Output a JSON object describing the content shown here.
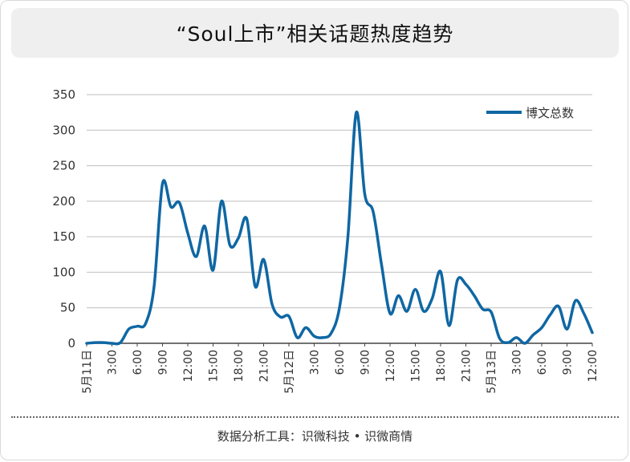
{
  "title": "“Soul上市”相关话题热度趋势",
  "source": "数据分析工具：识微科技 • 识微商情",
  "colors": {
    "line": "#0f67a3",
    "grid": "#bfbfbf",
    "axis": "#444444",
    "text": "#333333",
    "title_bg": "#efefef"
  },
  "chart_data": {
    "type": "line",
    "title": "",
    "xlabel": "",
    "ylabel": "",
    "ylim": [
      0,
      350
    ],
    "y_ticks": [
      0,
      50,
      100,
      150,
      200,
      250,
      300,
      350
    ],
    "grid": true,
    "legend_position": "top-right",
    "x_tick_labels": [
      "5月11日",
      "3:00",
      "6:00",
      "9:00",
      "12:00",
      "15:00",
      "18:00",
      "21:00",
      "5月12日",
      "3:00",
      "6:00",
      "9:00",
      "12:00",
      "15:00",
      "18:00",
      "21:00",
      "5月13日",
      "3:00",
      "6:00",
      "9:00",
      "12:00"
    ],
    "x_tick_hours": [
      0,
      3,
      6,
      9,
      12,
      15,
      18,
      21,
      24,
      27,
      30,
      33,
      36,
      39,
      42,
      45,
      48,
      51,
      54,
      57,
      60
    ],
    "series": [
      {
        "name": "博文总数",
        "x": [
          0,
          1,
          2,
          3,
          4,
          5,
          6,
          7,
          8,
          9,
          10,
          11,
          12,
          13,
          14,
          15,
          16,
          17,
          18,
          19,
          20,
          21,
          22,
          23,
          24,
          25,
          26,
          27,
          28,
          29,
          30,
          31,
          32,
          33,
          34,
          35,
          36,
          37,
          38,
          39,
          40,
          41,
          42,
          43,
          44,
          45,
          46,
          47,
          48,
          49,
          50,
          51,
          52,
          53,
          54,
          55,
          56,
          57,
          58,
          59,
          60
        ],
        "y": [
          0,
          1,
          1,
          0,
          1,
          20,
          24,
          28,
          80,
          225,
          192,
          198,
          155,
          122,
          165,
          103,
          200,
          138,
          148,
          175,
          80,
          118,
          55,
          37,
          38,
          8,
          22,
          10,
          8,
          14,
          50,
          150,
          325,
          210,
          185,
          110,
          42,
          67,
          45,
          76,
          45,
          63,
          101,
          25,
          89,
          83,
          67,
          48,
          44,
          7,
          1,
          8,
          0,
          12,
          22,
          40,
          52,
          20,
          60,
          42,
          15
        ]
      }
    ]
  }
}
